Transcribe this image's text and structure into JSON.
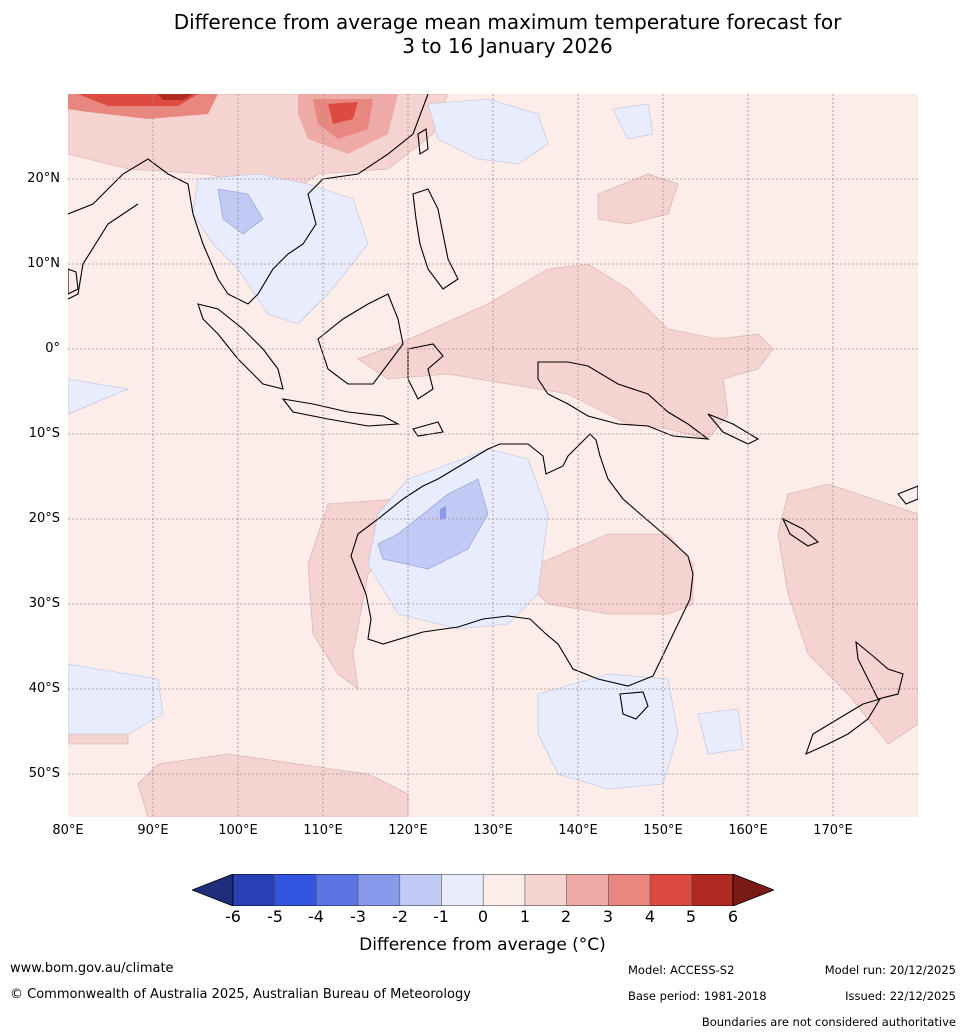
{
  "title": {
    "line1": "Difference from average mean maximum temperature forecast for",
    "line2": "3 to 16 January 2026"
  },
  "map": {
    "projection": "plate-carree",
    "lon_range": [
      80,
      180
    ],
    "lat_range": [
      -55,
      30
    ],
    "lat_ticks": [
      {
        "lat": 20,
        "label": "20°N"
      },
      {
        "lat": 10,
        "label": "10°N"
      },
      {
        "lat": 0,
        "label": "0°"
      },
      {
        "lat": -10,
        "label": "10°S"
      },
      {
        "lat": -20,
        "label": "20°S"
      },
      {
        "lat": -30,
        "label": "30°S"
      },
      {
        "lat": -40,
        "label": "40°S"
      },
      {
        "lat": -50,
        "label": "50°S"
      }
    ],
    "lon_ticks": [
      {
        "lon": 80,
        "label": "80°E"
      },
      {
        "lon": 90,
        "label": "90°E"
      },
      {
        "lon": 100,
        "label": "100°E"
      },
      {
        "lon": 110,
        "label": "110°E"
      },
      {
        "lon": 120,
        "label": "120°E"
      },
      {
        "lon": 130,
        "label": "130°E"
      },
      {
        "lon": 140,
        "label": "140°E"
      },
      {
        "lon": 150,
        "label": "150°E"
      },
      {
        "lon": 160,
        "label": "160°E"
      },
      {
        "lon": 170,
        "label": "170°E"
      }
    ],
    "background_color": "#fcecea"
  },
  "colorbar": {
    "ticks": [
      "-6",
      "-5",
      "-4",
      "-3",
      "-2",
      "-1",
      "0",
      "1",
      "2",
      "3",
      "4",
      "5",
      "6"
    ],
    "colors": [
      "#1f2e7a",
      "#2a40b5",
      "#3355e0",
      "#5b75e6",
      "#8899ec",
      "#c1caf4",
      "#e8ecfc",
      "#fcecea",
      "#f5d3d1",
      "#eeaaa6",
      "#e88680",
      "#dc4a40",
      "#b02a22",
      "#7a1a16"
    ],
    "label": "Difference from average ($^\\circ$C)",
    "label_display": "Difference from average (°C)"
  },
  "footer": {
    "website": "www.bom.gov.au/climate",
    "copyright": "© Commonwealth of Australia 2025, Australian Bureau of Meteorology",
    "model": "Model: ACCESS-S2",
    "base_period": "Base period: 1981-2018",
    "model_run": "Model run: 20/12/2025",
    "issued": "Issued: 22/12/2025",
    "disclaimer": "Boundaries are not considered authoritative"
  }
}
